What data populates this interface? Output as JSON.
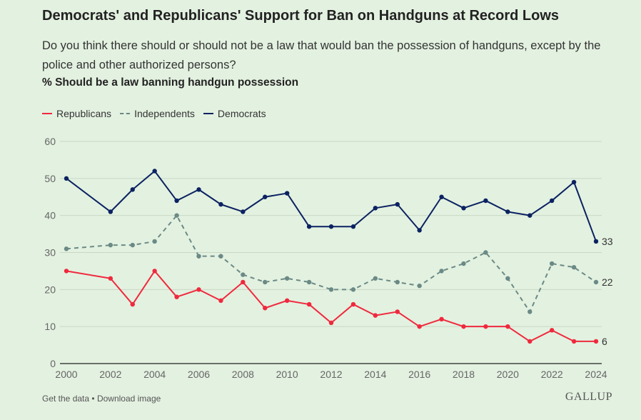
{
  "title": "Democrats' and Republicans' Support for Ban on Handguns at Record Lows",
  "subtitle": "Do you think there should or should not be a law that would ban the possession of handguns, except by the police and other authorized persons?",
  "measure": "% Should be a law banning handgun possession",
  "footer": {
    "get_data": "Get the data",
    "separator": "•",
    "download": "Download image"
  },
  "logo": "GALLUP",
  "chart_data": {
    "type": "line",
    "title": "Democrats' and Republicans' Support for Ban on Handguns at Record Lows",
    "ylabel": "% Should be a law banning handgun possession",
    "xlabel": "",
    "x": [
      2000,
      2002,
      2003,
      2004,
      2005,
      2006,
      2007,
      2008,
      2009,
      2010,
      2011,
      2012,
      2013,
      2014,
      2015,
      2016,
      2017,
      2018,
      2019,
      2020,
      2021,
      2022,
      2023,
      2024
    ],
    "xticks": [
      "2000",
      "2002",
      "2004",
      "2006",
      "2008",
      "2010",
      "2012",
      "2014",
      "2016",
      "2018",
      "2020",
      "2022",
      "2024"
    ],
    "yticks": [
      "0",
      "10",
      "20",
      "30",
      "40",
      "50",
      "60"
    ],
    "ylim": [
      0,
      60
    ],
    "xlim": [
      2000,
      2024
    ],
    "grid": true,
    "legend_position": "top-left",
    "series": [
      {
        "name": "Republicans",
        "color": "#f0293e",
        "style": "solid",
        "values": [
          25,
          23,
          16,
          25,
          18,
          20,
          17,
          22,
          15,
          17,
          16,
          11,
          16,
          13,
          14,
          10,
          12,
          10,
          10,
          10,
          6,
          9,
          6,
          6
        ],
        "end_label": "6"
      },
      {
        "name": "Independents",
        "color": "#6b8a86",
        "style": "dashed",
        "values": [
          31,
          32,
          32,
          33,
          40,
          29,
          29,
          24,
          22,
          23,
          22,
          20,
          20,
          23,
          22,
          21,
          25,
          27,
          30,
          23,
          14,
          27,
          26,
          22
        ],
        "end_label": "22"
      },
      {
        "name": "Democrats",
        "color": "#0b2262",
        "style": "solid",
        "values": [
          50,
          41,
          47,
          52,
          44,
          47,
          43,
          41,
          45,
          46,
          37,
          37,
          37,
          42,
          43,
          36,
          45,
          42,
          44,
          41,
          40,
          44,
          49,
          33
        ],
        "end_label": "33"
      }
    ]
  }
}
